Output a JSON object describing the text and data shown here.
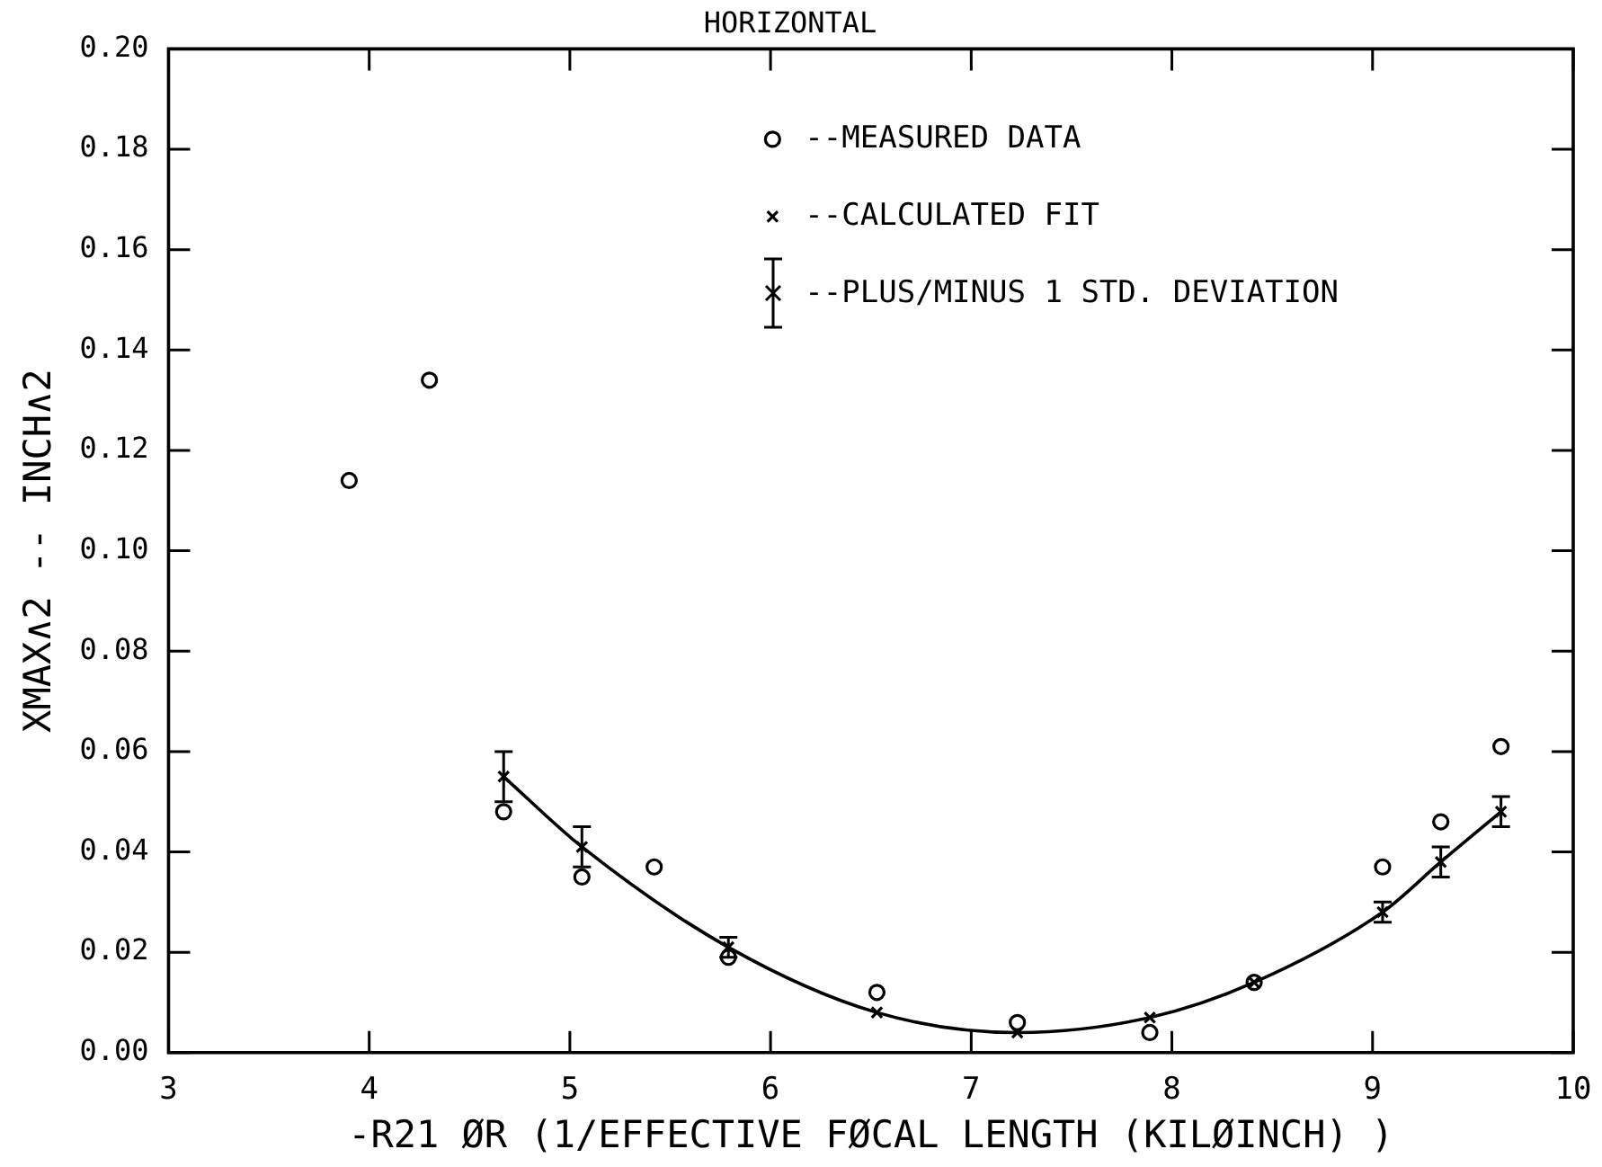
{
  "chart_data": {
    "type": "scatter",
    "title": "HORIZONTAL",
    "xlabel": "-R21 ØR (1/EFFECTIVE FØCAL LENGTH (KILØINCH) )",
    "ylabel": "XMAX∧2 -- INCH∧2",
    "xlim": [
      3,
      10
    ],
    "xticks": [
      3,
      4,
      5,
      6,
      7,
      8,
      9,
      10
    ],
    "ylim": [
      0,
      0.2
    ],
    "yticks": [
      {
        "value": 0,
        "label": "0.00"
      },
      {
        "value": 0.02,
        "label": "0.02"
      },
      {
        "value": 0.04,
        "label": "0.04"
      },
      {
        "value": 0.06,
        "label": "0.06"
      },
      {
        "value": 0.08,
        "label": "0.08"
      },
      {
        "value": 0.1,
        "label": "0.10"
      },
      {
        "value": 0.12,
        "label": "0.12"
      },
      {
        "value": 0.14,
        "label": "0.14"
      },
      {
        "value": 0.16,
        "label": "0.16"
      },
      {
        "value": 0.18,
        "label": "0.18"
      },
      {
        "value": 0.2,
        "label": "0.20"
      }
    ],
    "legend": "top",
    "series": [
      {
        "name": "--MEASURED DATA",
        "type": "scatter",
        "marker": "circle",
        "color": "#000000",
        "x": [
          3.9,
          4.3,
          4.67,
          5.06,
          5.42,
          5.79,
          6.53,
          7.23,
          7.89,
          8.41,
          9.05,
          9.34,
          9.64
        ],
        "values": [
          0.114,
          0.134,
          0.048,
          0.035,
          0.037,
          0.019,
          0.012,
          0.006,
          0.004,
          0.014,
          0.037,
          0.046,
          0.061
        ]
      },
      {
        "name": "--CALCULATED FIT",
        "type": "line",
        "marker": "cross",
        "line_style": "solid",
        "color": "#000000",
        "x": [
          4.67,
          5.06,
          5.79,
          6.53,
          7.23,
          7.89,
          8.41,
          9.05,
          9.34,
          9.64
        ],
        "values": [
          0.055,
          0.041,
          0.021,
          0.008,
          0.004,
          0.007,
          0.014,
          0.028,
          0.038,
          0.048
        ],
        "errors": [
          0.005,
          0.004,
          0.002,
          null,
          null,
          null,
          null,
          0.002,
          0.003,
          0.003
        ]
      }
    ],
    "annotations": [
      "--PLUS/MINUS 1 STD. DEVIATION"
    ]
  }
}
